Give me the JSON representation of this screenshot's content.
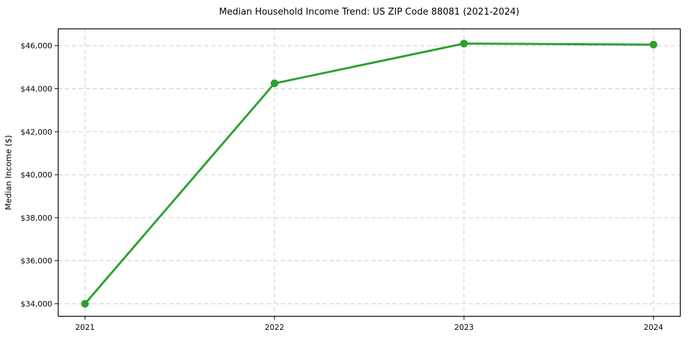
{
  "figure": {
    "background": "#ffffff"
  },
  "chart_data": {
    "type": "line",
    "title": "Median Household Income Trend: US ZIP Code 88081 (2021-2024)",
    "xlabel": "",
    "ylabel": "Median Income ($)",
    "categories": [
      "2021",
      "2022",
      "2023",
      "2024"
    ],
    "series": [
      {
        "color": "#2ca02c",
        "values": [
          34000,
          44250,
          46100,
          46050
        ],
        "marker": "circle",
        "line_width": 3,
        "marker_radius": 5.5
      }
    ],
    "yticks": [
      34000,
      36000,
      38000,
      40000,
      42000,
      44000,
      46000
    ],
    "ytick_labels": [
      "$34,000",
      "$36,000",
      "$38,000",
      "$40,000",
      "$42,000",
      "$44,000",
      "$46,000"
    ],
    "ylim": [
      33400,
      46800
    ],
    "grid": {
      "show": true,
      "style": "dashed",
      "color": "#cdcdcd"
    },
    "legend": {
      "show": false
    },
    "axis_color": "#000000",
    "text_color": "#000000",
    "tick_font_size": 11,
    "title_font_size": 13
  }
}
